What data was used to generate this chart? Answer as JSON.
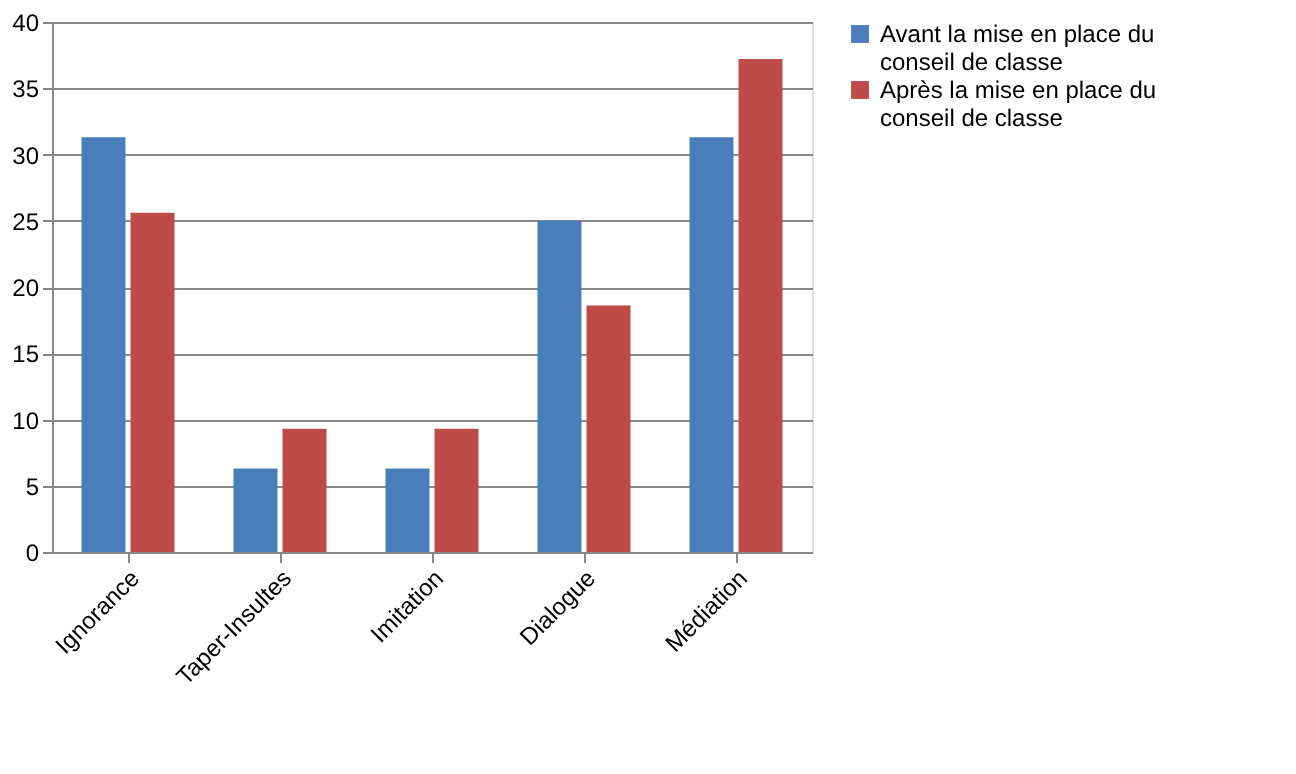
{
  "chart_data": {
    "type": "bar",
    "categories": [
      "Ignorance",
      "Taper-Insultes",
      "Imitation",
      "Dialogue",
      "Médiation"
    ],
    "series": [
      {
        "name": "Avant la mise en place du conseil de classe",
        "color": "#4a7ebb",
        "values": [
          31.3,
          6.3,
          6.3,
          25,
          31.3
        ]
      },
      {
        "name": "Après la mise en place du conseil de classe",
        "color": "#be4b48",
        "values": [
          25.6,
          9.3,
          9.3,
          18.6,
          37.2
        ]
      }
    ],
    "ylim": [
      0,
      40
    ],
    "yticks": [
      0,
      5,
      10,
      15,
      20,
      25,
      30,
      35,
      40
    ],
    "grid": "y",
    "legend": "right"
  }
}
